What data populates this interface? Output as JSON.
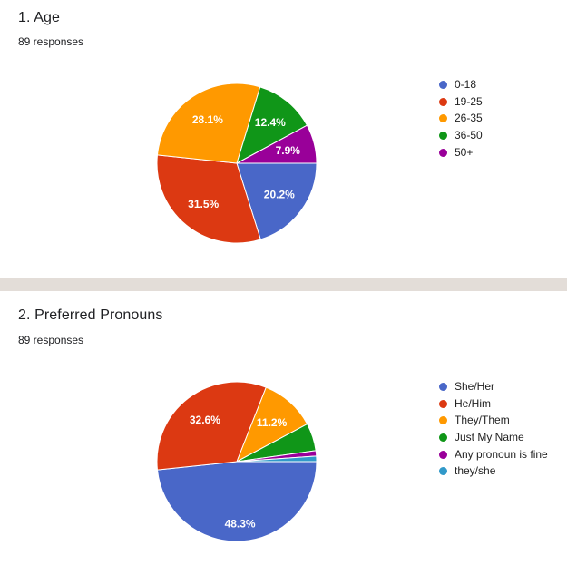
{
  "page": {
    "background_color": "#ffffff",
    "divider_color": "#e3ddd8"
  },
  "sections": [
    {
      "title": "1. Age",
      "responses": "89 responses"
    },
    {
      "title": "2. Preferred Pronouns",
      "responses": "89 responses"
    }
  ],
  "chart_data": [
    {
      "type": "pie",
      "title": "1. Age",
      "subtitle": "89 responses",
      "start_angle_deg": 0,
      "direction": "clockwise",
      "legend_position": "right",
      "categories": [
        "0-18",
        "19-25",
        "26-35",
        "36-50",
        "50+"
      ],
      "values": [
        20.2,
        31.5,
        28.1,
        12.4,
        7.9
      ],
      "slice_labels": [
        "20.2%",
        "31.5%",
        "28.1%",
        "12.4%",
        "7.9%"
      ],
      "colors": [
        "#4967c8",
        "#dc3912",
        "#ff9900",
        "#109618",
        "#990099"
      ],
      "label_color": "#ffffff"
    },
    {
      "type": "pie",
      "title": "2. Preferred Pronouns",
      "subtitle": "89 responses",
      "start_angle_deg": 0,
      "direction": "clockwise",
      "legend_position": "right",
      "categories": [
        "She/Her",
        "He/Him",
        "They/Them",
        "Just My Name",
        "Any pronoun is fine",
        "they/she"
      ],
      "values": [
        48.3,
        32.6,
        11.2,
        5.6,
        1.1,
        1.1
      ],
      "slice_labels": [
        "48.3%",
        "32.6%",
        "11.2%",
        "",
        "",
        ""
      ],
      "colors": [
        "#4967c8",
        "#dc3912",
        "#ff9900",
        "#109618",
        "#990099",
        "#3199c9"
      ],
      "label_color": "#ffffff"
    }
  ]
}
